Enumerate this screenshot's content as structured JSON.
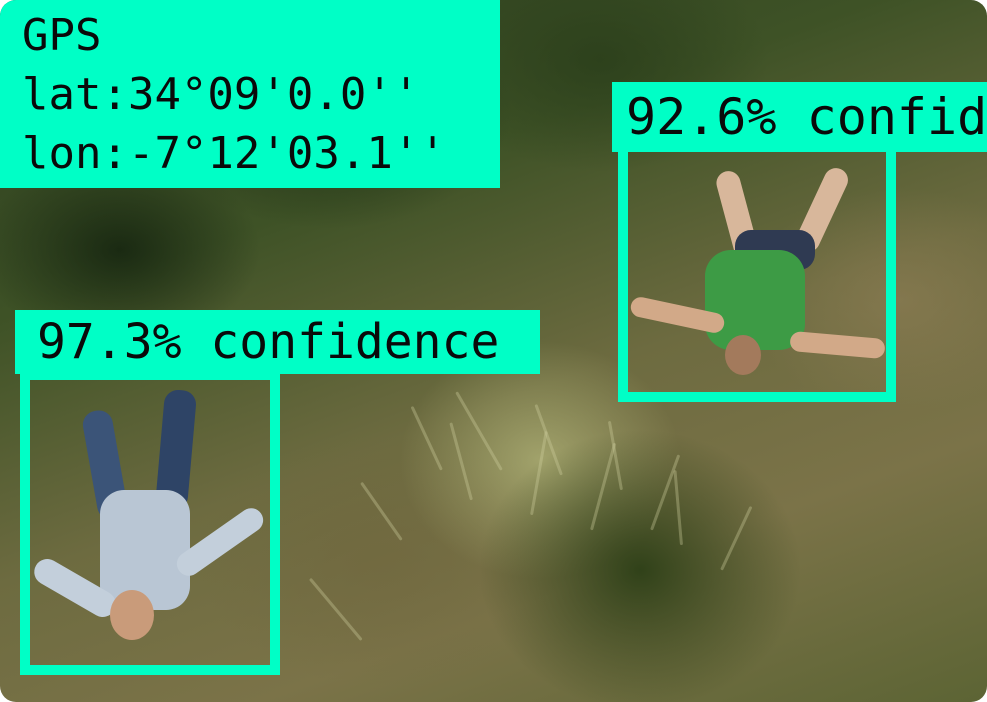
{
  "gps": {
    "title": "GPS",
    "lat": "lat:34°09'0.0''",
    "lon": "lon:-7°12'03.1''"
  },
  "detections": [
    {
      "label": "97.3% confidence",
      "confidence": 97.3
    },
    {
      "label": "92.6% confid",
      "confidence": 92.6
    }
  ],
  "colors": {
    "annotation": "#00ffc6",
    "text": "#0a0a0a",
    "shirt_person1": "#b9c6d4",
    "shirt_person2": "#3d9b45"
  }
}
